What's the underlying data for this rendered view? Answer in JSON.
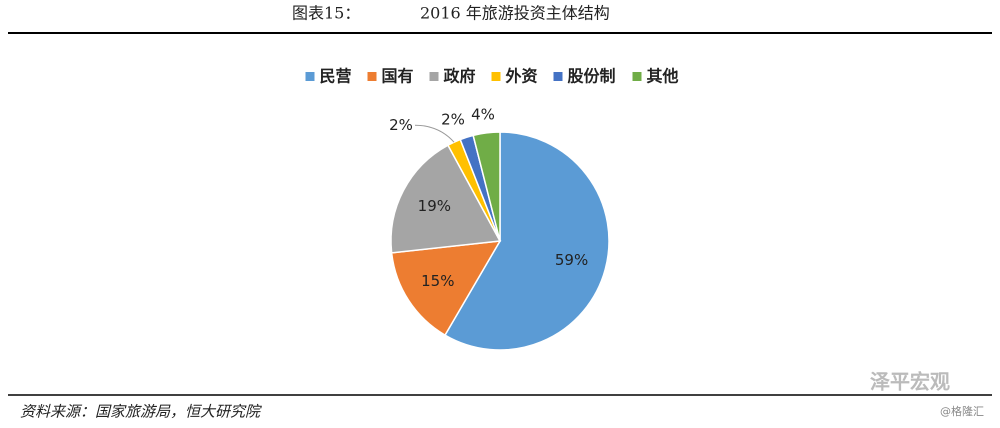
{
  "figure_label": "图表15：",
  "chart_data": {
    "type": "pie",
    "title": "2016 年旅游投资主体结构",
    "categories": [
      "民营",
      "国有",
      "政府",
      "外资",
      "股份制",
      "其他"
    ],
    "values": [
      59,
      15,
      19,
      2,
      2,
      4
    ],
    "value_labels": [
      "59%",
      "15%",
      "19%",
      "2%",
      "2%",
      "4%"
    ],
    "colors": [
      "#5b9bd5",
      "#ed7d31",
      "#a5a5a5",
      "#ffc000",
      "#4472c4",
      "#70ad47"
    ],
    "legend": "top"
  },
  "source": "资料来源：国家旅游局，恒大研究院",
  "watermark": "泽平宏观",
  "credit": "@格隆汇"
}
